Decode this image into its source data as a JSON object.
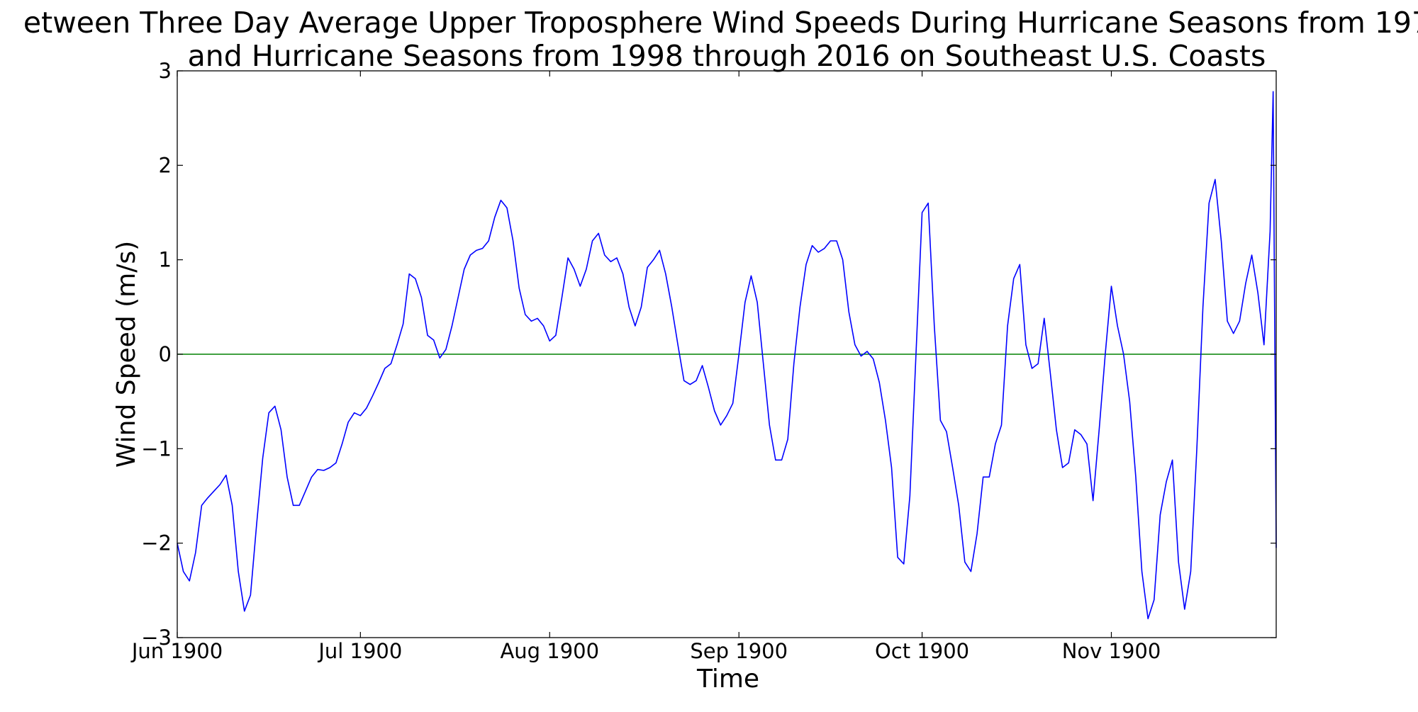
{
  "chart_data": {
    "type": "line",
    "title_line1": "etween Three Day Average Upper Troposphere Wind Speeds During Hurricane Seasons from 197",
    "title_line2": "and Hurricane Seasons from 1998 through 2016 on Southeast U.S. Coasts",
    "xlabel": "Time",
    "ylabel": "Wind Speed (m/s)",
    "x_ticks": [
      "Jun 1900",
      "Jul 1900",
      "Aug 1900",
      "Sep 1900",
      "Oct 1900",
      "Nov 1900"
    ],
    "x_tick_dates": [
      "1900-06-01",
      "1900-07-01",
      "1900-08-01",
      "1900-09-01",
      "1900-10-01",
      "1900-11-01"
    ],
    "xlim": [
      "1900-06-01",
      "1900-11-28"
    ],
    "y_ticks": [
      "−3",
      "−2",
      "−1",
      "0",
      "1",
      "2",
      "3"
    ],
    "y_tick_values": [
      -3,
      -2,
      -1,
      0,
      1,
      2,
      3
    ],
    "ylim": [
      -3,
      3
    ],
    "grid": false,
    "reference_line": {
      "y": 0,
      "color": "#008000"
    },
    "series": [
      {
        "color": "#0000ff",
        "points": [
          [
            "1900-06-01",
            -2.0
          ],
          [
            "1900-06-02",
            -2.3
          ],
          [
            "1900-06-03",
            -2.4
          ],
          [
            "1900-06-04",
            -2.1
          ],
          [
            "1900-06-05",
            -1.6
          ],
          [
            "1900-06-06",
            -1.52
          ],
          [
            "1900-06-07",
            -1.45
          ],
          [
            "1900-06-08",
            -1.38
          ],
          [
            "1900-06-09",
            -1.28
          ],
          [
            "1900-06-10",
            -1.6
          ],
          [
            "1900-06-11",
            -2.3
          ],
          [
            "1900-06-12",
            -2.72
          ],
          [
            "1900-06-13",
            -2.55
          ],
          [
            "1900-06-14",
            -1.8
          ],
          [
            "1900-06-15",
            -1.1
          ],
          [
            "1900-06-16",
            -0.62
          ],
          [
            "1900-06-17",
            -0.55
          ],
          [
            "1900-06-18",
            -0.8
          ],
          [
            "1900-06-19",
            -1.3
          ],
          [
            "1900-06-20",
            -1.6
          ],
          [
            "1900-06-21",
            -1.6
          ],
          [
            "1900-06-22",
            -1.45
          ],
          [
            "1900-06-23",
            -1.3
          ],
          [
            "1900-06-24",
            -1.22
          ],
          [
            "1900-06-25",
            -1.23
          ],
          [
            "1900-06-26",
            -1.2
          ],
          [
            "1900-06-27",
            -1.15
          ],
          [
            "1900-06-28",
            -0.95
          ],
          [
            "1900-06-29",
            -0.72
          ],
          [
            "1900-06-30",
            -0.62
          ],
          [
            "1900-07-01",
            -0.65
          ],
          [
            "1900-07-02",
            -0.57
          ],
          [
            "1900-07-03",
            -0.44
          ],
          [
            "1900-07-04",
            -0.3
          ],
          [
            "1900-07-05",
            -0.15
          ],
          [
            "1900-07-06",
            -0.1
          ],
          [
            "1900-07-07",
            0.1
          ],
          [
            "1900-07-08",
            0.32
          ],
          [
            "1900-07-09",
            0.85
          ],
          [
            "1900-07-10",
            0.8
          ],
          [
            "1900-07-11",
            0.6
          ],
          [
            "1900-07-12",
            0.2
          ],
          [
            "1900-07-13",
            0.15
          ],
          [
            "1900-07-14",
            -0.04
          ],
          [
            "1900-07-15",
            0.05
          ],
          [
            "1900-07-16",
            0.3
          ],
          [
            "1900-07-17",
            0.6
          ],
          [
            "1900-07-18",
            0.9
          ],
          [
            "1900-07-19",
            1.05
          ],
          [
            "1900-07-20",
            1.1
          ],
          [
            "1900-07-21",
            1.12
          ],
          [
            "1900-07-22",
            1.2
          ],
          [
            "1900-07-23",
            1.45
          ],
          [
            "1900-07-24",
            1.63
          ],
          [
            "1900-07-25",
            1.55
          ],
          [
            "1900-07-26",
            1.2
          ],
          [
            "1900-07-27",
            0.7
          ],
          [
            "1900-07-28",
            0.42
          ],
          [
            "1900-07-29",
            0.35
          ],
          [
            "1900-07-30",
            0.38
          ],
          [
            "1900-07-31",
            0.3
          ],
          [
            "1900-08-01",
            0.14
          ],
          [
            "1900-08-02",
            0.2
          ],
          [
            "1900-08-03",
            0.6
          ],
          [
            "1900-08-04",
            1.02
          ],
          [
            "1900-08-05",
            0.9
          ],
          [
            "1900-08-06",
            0.72
          ],
          [
            "1900-08-07",
            0.9
          ],
          [
            "1900-08-08",
            1.2
          ],
          [
            "1900-08-09",
            1.28
          ],
          [
            "1900-08-10",
            1.05
          ],
          [
            "1900-08-11",
            0.98
          ],
          [
            "1900-08-12",
            1.02
          ],
          [
            "1900-08-13",
            0.85
          ],
          [
            "1900-08-14",
            0.5
          ],
          [
            "1900-08-15",
            0.3
          ],
          [
            "1900-08-16",
            0.5
          ],
          [
            "1900-08-17",
            0.92
          ],
          [
            "1900-08-18",
            1.0
          ],
          [
            "1900-08-19",
            1.1
          ],
          [
            "1900-08-20",
            0.85
          ],
          [
            "1900-08-21",
            0.5
          ],
          [
            "1900-08-22",
            0.1
          ],
          [
            "1900-08-23",
            -0.28
          ],
          [
            "1900-08-24",
            -0.32
          ],
          [
            "1900-08-25",
            -0.28
          ],
          [
            "1900-08-26",
            -0.12
          ],
          [
            "1900-08-27",
            -0.35
          ],
          [
            "1900-08-28",
            -0.6
          ],
          [
            "1900-08-29",
            -0.75
          ],
          [
            "1900-08-30",
            -0.65
          ],
          [
            "1900-08-31",
            -0.52
          ],
          [
            "1900-09-01",
            0.0
          ],
          [
            "1900-09-02",
            0.55
          ],
          [
            "1900-09-03",
            0.83
          ],
          [
            "1900-09-04",
            0.55
          ],
          [
            "1900-09-05",
            -0.1
          ],
          [
            "1900-09-06",
            -0.75
          ],
          [
            "1900-09-07",
            -1.12
          ],
          [
            "1900-09-08",
            -1.12
          ],
          [
            "1900-09-09",
            -0.9
          ],
          [
            "1900-09-10",
            -0.1
          ],
          [
            "1900-09-11",
            0.5
          ],
          [
            "1900-09-12",
            0.95
          ],
          [
            "1900-09-13",
            1.15
          ],
          [
            "1900-09-14",
            1.08
          ],
          [
            "1900-09-15",
            1.12
          ],
          [
            "1900-09-16",
            1.2
          ],
          [
            "1900-09-17",
            1.2
          ],
          [
            "1900-09-18",
            1.0
          ],
          [
            "1900-09-19",
            0.45
          ],
          [
            "1900-09-20",
            0.1
          ],
          [
            "1900-09-21",
            -0.02
          ],
          [
            "1900-09-22",
            0.03
          ],
          [
            "1900-09-23",
            -0.05
          ],
          [
            "1900-09-24",
            -0.3
          ],
          [
            "1900-09-25",
            -0.7
          ],
          [
            "1900-09-26",
            -1.2
          ],
          [
            "1900-09-27",
            -2.15
          ],
          [
            "1900-09-28",
            -2.22
          ],
          [
            "1900-09-29",
            -1.5
          ],
          [
            "1900-09-30",
            0.0
          ],
          [
            "1900-10-01",
            1.5
          ],
          [
            "1900-10-02",
            1.6
          ],
          [
            "1900-10-03",
            0.3
          ],
          [
            "1900-10-04",
            -0.7
          ],
          [
            "1900-10-05",
            -0.82
          ],
          [
            "1900-10-06",
            -1.2
          ],
          [
            "1900-10-07",
            -1.6
          ],
          [
            "1900-10-08",
            -2.2
          ],
          [
            "1900-10-09",
            -2.3
          ],
          [
            "1900-10-10",
            -1.9
          ],
          [
            "1900-10-11",
            -1.3
          ],
          [
            "1900-10-12",
            -1.3
          ],
          [
            "1900-10-13",
            -0.95
          ],
          [
            "1900-10-14",
            -0.75
          ],
          [
            "1900-10-15",
            0.3
          ],
          [
            "1900-10-16",
            0.8
          ],
          [
            "1900-10-17",
            0.95
          ],
          [
            "1900-10-18",
            0.1
          ],
          [
            "1900-10-19",
            -0.15
          ],
          [
            "1900-10-20",
            -0.1
          ],
          [
            "1900-10-21",
            0.38
          ],
          [
            "1900-10-22",
            -0.2
          ],
          [
            "1900-10-23",
            -0.8
          ],
          [
            "1900-10-24",
            -1.2
          ],
          [
            "1900-10-25",
            -1.15
          ],
          [
            "1900-10-26",
            -0.8
          ],
          [
            "1900-10-27",
            -0.85
          ],
          [
            "1900-10-28",
            -0.95
          ],
          [
            "1900-10-29",
            -1.55
          ],
          [
            "1900-10-30",
            -0.8
          ],
          [
            "1900-10-31",
            0.0
          ],
          [
            "1900-11-01",
            0.72
          ],
          [
            "1900-11-02",
            0.3
          ],
          [
            "1900-11-03",
            0.0
          ],
          [
            "1900-11-04",
            -0.5
          ],
          [
            "1900-11-05",
            -1.3
          ],
          [
            "1900-11-06",
            -2.3
          ],
          [
            "1900-11-07",
            -2.8
          ],
          [
            "1900-11-08",
            -2.6
          ],
          [
            "1900-11-09",
            -1.7
          ],
          [
            "1900-11-10",
            -1.35
          ],
          [
            "1900-11-11",
            -1.12
          ],
          [
            "1900-11-12",
            -2.2
          ],
          [
            "1900-11-13",
            -2.7
          ],
          [
            "1900-11-14",
            -2.3
          ],
          [
            "1900-11-15",
            -1.0
          ],
          [
            "1900-11-16",
            0.5
          ],
          [
            "1900-11-17",
            1.6
          ],
          [
            "1900-11-18",
            1.85
          ],
          [
            "1900-11-19",
            1.2
          ],
          [
            "1900-11-20",
            0.35
          ],
          [
            "1900-11-21",
            0.22
          ],
          [
            "1900-11-22",
            0.35
          ],
          [
            "1900-11-23",
            0.75
          ],
          [
            "1900-11-24",
            1.05
          ],
          [
            "1900-11-25",
            0.65
          ],
          [
            "1900-11-26",
            0.1
          ],
          [
            "1900-11-27",
            1.3
          ],
          [
            "1900-11-27T12:00",
            2.78
          ],
          [
            "1900-11-28",
            -2.05
          ]
        ]
      }
    ]
  }
}
